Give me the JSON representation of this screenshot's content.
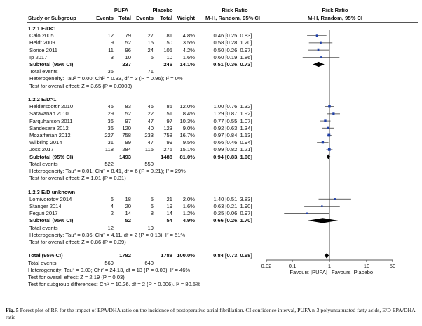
{
  "header": {
    "group_pufa": "PUFA",
    "group_placebo": "Placebo",
    "col_rr": "Risk Ratio",
    "col_rr_plot": "Risk Ratio",
    "col_study": "Study or Subgroup",
    "col_events1": "Events",
    "col_total1": "Total",
    "col_events2": "Events",
    "col_total2": "Total",
    "col_weight": "Weight",
    "col_method": "M-H, Random, 95% CI",
    "col_method_plot": "M-H, Random, 95% CI"
  },
  "subgroups": [
    {
      "title": "1.2.1 E/D<1",
      "studies": [
        {
          "name": "Calo 2005",
          "e1": "12",
          "n1": "79",
          "e2": "27",
          "n2": "81",
          "weight": "4.8%",
          "ci": "0.46 [0.25, 0.83]"
        },
        {
          "name": "Heidt 2009",
          "e1": "9",
          "n1": "52",
          "e2": "15",
          "n2": "50",
          "weight": "3.5%",
          "ci": "0.58 [0.28, 1.20]"
        },
        {
          "name": "Sorice 2011",
          "e1": "11",
          "n1": "96",
          "e2": "24",
          "n2": "105",
          "weight": "4.2%",
          "ci": "0.50 [0.26, 0.97]"
        },
        {
          "name": "Ip 2017",
          "e1": "3",
          "n1": "10",
          "e2": "5",
          "n2": "10",
          "weight": "1.6%",
          "ci": "0.60 [0.19, 1.86]"
        }
      ],
      "subtotal": {
        "label": "Subtotal (95% CI)",
        "n1": "237",
        "n2": "246",
        "weight": "14.1%",
        "ci": "0.51 [0.36, 0.73]"
      },
      "total_events": {
        "label": "Total events",
        "e1": "35",
        "e2": "71"
      },
      "heterogeneity": "Heterogeneity: Tau² = 0.00; Chi² = 0.33, df = 3 (P = 0.96); I² = 0%",
      "overall": "Test for overall effect: Z = 3.65 (P = 0.0003)"
    },
    {
      "title": "1.2.2 E/D>1",
      "studies": [
        {
          "name": "Heidarsdottir 2010",
          "e1": "45",
          "n1": "83",
          "e2": "46",
          "n2": "85",
          "weight": "12.0%",
          "ci": "1.00 [0.76, 1.32]"
        },
        {
          "name": "Saravanan 2010",
          "e1": "29",
          "n1": "52",
          "e2": "22",
          "n2": "51",
          "weight": "8.4%",
          "ci": "1.29 [0.87, 1.92]"
        },
        {
          "name": "Farquharson 2011",
          "e1": "36",
          "n1": "97",
          "e2": "47",
          "n2": "97",
          "weight": "10.3%",
          "ci": "0.77 [0.55, 1.07]"
        },
        {
          "name": "Sandesara 2012",
          "e1": "36",
          "n1": "120",
          "e2": "40",
          "n2": "123",
          "weight": "9.0%",
          "ci": "0.92 [0.63, 1.34]"
        },
        {
          "name": "Mozaffarian 2012",
          "e1": "227",
          "n1": "758",
          "e2": "233",
          "n2": "758",
          "weight": "16.7%",
          "ci": "0.97 [0.84, 1.13]"
        },
        {
          "name": "Wilbring 2014",
          "e1": "31",
          "n1": "99",
          "e2": "47",
          "n2": "99",
          "weight": "9.5%",
          "ci": "0.66 [0.46, 0.94]"
        },
        {
          "name": "Joss 2017",
          "e1": "118",
          "n1": "284",
          "e2": "115",
          "n2": "275",
          "weight": "15.1%",
          "ci": "0.99 [0.82, 1.21]"
        }
      ],
      "subtotal": {
        "label": "Subtotal (95% CI)",
        "n1": "1493",
        "n2": "1488",
        "weight": "81.0%",
        "ci": "0.94 [0.83, 1.06]"
      },
      "total_events": {
        "label": "Total events",
        "e1": "522",
        "e2": "550"
      },
      "heterogeneity": "Heterogeneity: Tau² = 0.01; Chi² = 8.41, df = 6 (P = 0.21); I² = 29%",
      "overall": "Test for overall effect: Z = 1.01 (P = 0.31)"
    },
    {
      "title": "1.2.3 E/D unknown",
      "studies": [
        {
          "name": "Lomivorotov 2014",
          "e1": "6",
          "n1": "18",
          "e2": "5",
          "n2": "21",
          "weight": "2.0%",
          "ci": "1.40 [0.51, 3.83]"
        },
        {
          "name": "Stanger 2014",
          "e1": "4",
          "n1": "20",
          "e2": "6",
          "n2": "19",
          "weight": "1.6%",
          "ci": "0.63 [0.21, 1.90]"
        },
        {
          "name": "Feguri 2017",
          "e1": "2",
          "n1": "14",
          "e2": "8",
          "n2": "14",
          "weight": "1.2%",
          "ci": "0.25 [0.06, 0.97]"
        }
      ],
      "subtotal": {
        "label": "Subtotal (95% CI)",
        "n1": "52",
        "n2": "54",
        "weight": "4.9%",
        "ci": "0.66 [0.26, 1.70]"
      },
      "total_events": {
        "label": "Total events",
        "e1": "12",
        "e2": "19"
      },
      "heterogeneity": "Heterogeneity: Tau² = 0.36; Chi² = 4.11, df = 2 (P = 0.13); I² = 51%",
      "overall": "Test for overall effect: Z = 0.86 (P = 0.39)"
    }
  ],
  "total": {
    "label": "Total (95% CI)",
    "n1": "1782",
    "n2": "1788",
    "weight": "100.0%",
    "ci": "0.84 [0.73, 0.98]",
    "events_label": "Total events",
    "e1": "569",
    "e2": "640",
    "heterogeneity": "Heterogeneity: Tau² = 0.03; Chi² = 24.13, df = 13 (P = 0.03); I² = 46%",
    "overall": "Test for overall effect: Z = 2.19 (P = 0.03)",
    "subgroup_diff": "Test for subgroup differences: Chi² = 10.26. df = 2 (P = 0.006). I² = 80.5%"
  },
  "caption": {
    "label": "Fig. 5",
    "text": "Forest plot of RR for the impact of EPA/DHA ratio on the incidence of postoperative atrial fibrillation. CI confidence interval, PUFA n-3 polyunsaturated fatty acids, E/D EPA/DHA ratio"
  },
  "chart_data": {
    "type": "forest",
    "x_scale": "log",
    "xlim": [
      0.02,
      50
    ],
    "x_ticks": [
      0.02,
      0.1,
      1,
      10,
      50
    ],
    "x_tick_labels": [
      "0.02",
      "0.1",
      "1",
      "10",
      "50"
    ],
    "favours_left": "Favours [PUFA]",
    "favours_right": "Favours [Placebo]",
    "study_color": "#1f3fa8",
    "points": [
      {
        "study": "Calo 2005",
        "rr": 0.46,
        "lo": 0.25,
        "hi": 0.83,
        "weight": 4.8
      },
      {
        "study": "Heidt 2009",
        "rr": 0.58,
        "lo": 0.28,
        "hi": 1.2,
        "weight": 3.5
      },
      {
        "study": "Sorice 2011",
        "rr": 0.5,
        "lo": 0.26,
        "hi": 0.97,
        "weight": 4.2
      },
      {
        "study": "Ip 2017",
        "rr": 0.6,
        "lo": 0.19,
        "hi": 1.86,
        "weight": 1.6
      },
      {
        "study": "Subtotal 1.2.1",
        "rr": 0.51,
        "lo": 0.36,
        "hi": 0.73,
        "diamond": true
      },
      {
        "study": "Heidarsdottir 2010",
        "rr": 1.0,
        "lo": 0.76,
        "hi": 1.32,
        "weight": 12.0
      },
      {
        "study": "Saravanan 2010",
        "rr": 1.29,
        "lo": 0.87,
        "hi": 1.92,
        "weight": 8.4
      },
      {
        "study": "Farquharson 2011",
        "rr": 0.77,
        "lo": 0.55,
        "hi": 1.07,
        "weight": 10.3
      },
      {
        "study": "Sandesara 2012",
        "rr": 0.92,
        "lo": 0.63,
        "hi": 1.34,
        "weight": 9.0
      },
      {
        "study": "Mozaffarian 2012",
        "rr": 0.97,
        "lo": 0.84,
        "hi": 1.13,
        "weight": 16.7
      },
      {
        "study": "Wilbring 2014",
        "rr": 0.66,
        "lo": 0.46,
        "hi": 0.94,
        "weight": 9.5
      },
      {
        "study": "Joss 2017",
        "rr": 0.99,
        "lo": 0.82,
        "hi": 1.21,
        "weight": 15.1
      },
      {
        "study": "Subtotal 1.2.2",
        "rr": 0.94,
        "lo": 0.83,
        "hi": 1.06,
        "diamond": true
      },
      {
        "study": "Lomivorotov 2014",
        "rr": 1.4,
        "lo": 0.51,
        "hi": 3.83,
        "weight": 2.0
      },
      {
        "study": "Stanger 2014",
        "rr": 0.63,
        "lo": 0.21,
        "hi": 1.9,
        "weight": 1.6
      },
      {
        "study": "Feguri 2017",
        "rr": 0.25,
        "lo": 0.06,
        "hi": 0.97,
        "weight": 1.2
      },
      {
        "study": "Subtotal 1.2.3",
        "rr": 0.66,
        "lo": 0.26,
        "hi": 1.7,
        "diamond": true
      },
      {
        "study": "Total",
        "rr": 0.84,
        "lo": 0.73,
        "hi": 0.98,
        "diamond": true
      }
    ]
  }
}
